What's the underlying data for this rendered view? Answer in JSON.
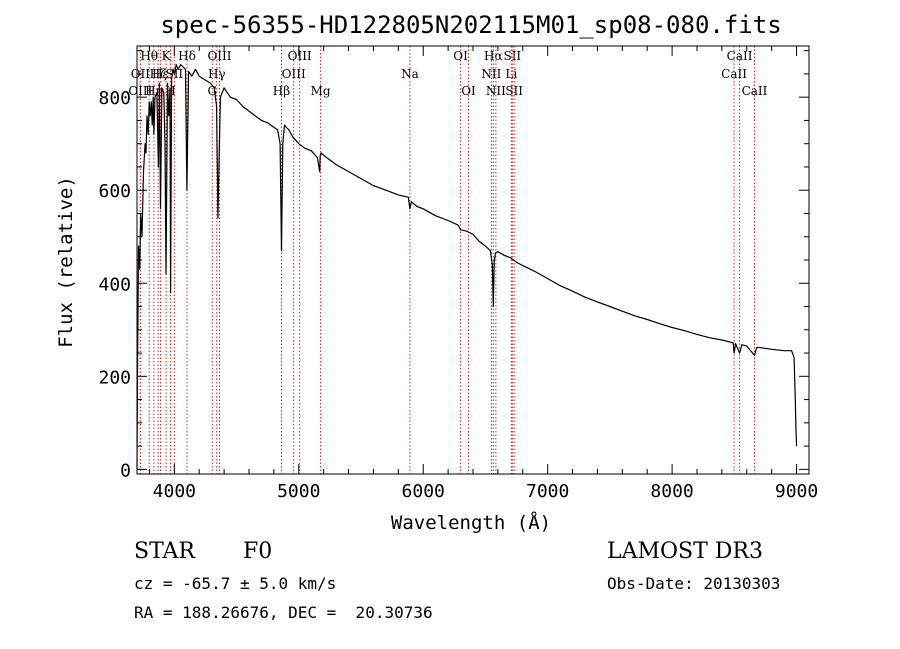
{
  "chart_data": {
    "type": "line",
    "title": "spec-56355-HD122805N202115M01_sp08-080.fits",
    "xlabel": "Wavelength (Å)",
    "ylabel": "Flux (relative)",
    "xlim": [
      3700,
      9100
    ],
    "ylim": [
      -10,
      910
    ],
    "xticks": [
      4000,
      5000,
      6000,
      7000,
      8000,
      9000
    ],
    "yticks": [
      0,
      200,
      400,
      600,
      800
    ],
    "series": [
      {
        "name": "spectrum",
        "x": [
          3700,
          3705,
          3712,
          3722,
          3730,
          3740,
          3752,
          3765,
          3772,
          3780,
          3790,
          3798,
          3806,
          3815,
          3822,
          3830,
          3836,
          3845,
          3860,
          3872,
          3880,
          3889,
          3900,
          3915,
          3925,
          3933,
          3945,
          3955,
          3965,
          3970,
          3978,
          3990,
          4000,
          4015,
          4030,
          4050,
          4070,
          4090,
          4101,
          4115,
          4140,
          4170,
          4200,
          4230,
          4260,
          4290,
          4320,
          4340,
          4350,
          4370,
          4400,
          4450,
          4500,
          4550,
          4600,
          4650,
          4700,
          4750,
          4800,
          4830,
          4850,
          4861,
          4872,
          4885,
          4900,
          4920,
          4950,
          5000,
          5050,
          5100,
          5150,
          5168,
          5172,
          5180,
          5200,
          5250,
          5300,
          5400,
          5500,
          5600,
          5700,
          5800,
          5880,
          5893,
          5905,
          5950,
          6000,
          6100,
          6200,
          6280,
          6300,
          6350,
          6400,
          6450,
          6500,
          6540,
          6555,
          6563,
          6570,
          6580,
          6600,
          6650,
          6700,
          6750,
          6800,
          6900,
          7000,
          7100,
          7200,
          7300,
          7400,
          7500,
          7600,
          7700,
          7800,
          7900,
          8000,
          8100,
          8200,
          8300,
          8400,
          8490,
          8498,
          8510,
          8542,
          8560,
          8600,
          8662,
          8680,
          8700,
          8800,
          8900,
          8960,
          8980,
          8990,
          8995,
          9000
        ],
        "values": [
          0,
          230,
          480,
          430,
          550,
          500,
          640,
          700,
          680,
          760,
          720,
          790,
          760,
          790,
          740,
          800,
          720,
          800,
          810,
          650,
          830,
          560,
          820,
          810,
          700,
          420,
          830,
          760,
          820,
          380,
          840,
          860,
          850,
          870,
          860,
          870,
          865,
          860,
          600,
          855,
          845,
          860,
          845,
          840,
          835,
          830,
          820,
          780,
          540,
          800,
          820,
          800,
          795,
          780,
          770,
          760,
          750,
          745,
          735,
          730,
          700,
          470,
          700,
          740,
          735,
          730,
          715,
          700,
          690,
          685,
          670,
          640,
          675,
          680,
          675,
          665,
          655,
          640,
          625,
          610,
          600,
          590,
          585,
          560,
          575,
          565,
          560,
          545,
          535,
          525,
          515,
          512,
          505,
          490,
          480,
          470,
          440,
          350,
          445,
          465,
          468,
          460,
          455,
          445,
          438,
          425,
          410,
          395,
          383,
          370,
          360,
          350,
          340,
          330,
          322,
          313,
          305,
          298,
          290,
          283,
          278,
          272,
          250,
          270,
          250,
          268,
          265,
          245,
          262,
          262,
          258,
          255,
          255,
          240,
          150,
          90,
          50
        ]
      }
    ],
    "spectral_lines": [
      {
        "label": "Hθ",
        "wavelength": 3798,
        "row": 1
      },
      {
        "label": "OII",
        "wavelength": 3727,
        "row": 2
      },
      {
        "label": "OIII",
        "wavelength": 3727,
        "row": 3
      },
      {
        "label": "Hη",
        "wavelength": 3836,
        "row": 3
      },
      {
        "label": "K",
        "wavelength": 3934,
        "row": 1
      },
      {
        "label": "Hε",
        "wavelength": 3889,
        "row": 2
      },
      {
        "label": "H",
        "wavelength": 3969,
        "row": 3
      },
      {
        "label": "Hζ",
        "wavelength": 3870,
        "row": 2
      },
      {
        "label": "SII",
        "wavelength": 4000,
        "row": 2
      },
      {
        "label": "Hδ",
        "wavelength": 4102,
        "row": 1
      },
      {
        "label": "OIII",
        "wavelength": 4363,
        "row": 1
      },
      {
        "label": "Hγ",
        "wavelength": 4341,
        "row": 2
      },
      {
        "label": "G",
        "wavelength": 4305,
        "row": 3
      },
      {
        "label": "Hβ",
        "wavelength": 4861,
        "row": 3
      },
      {
        "label": "OIII",
        "wavelength": 5007,
        "row": 1
      },
      {
        "label": "OIII",
        "wavelength": 4959,
        "row": 2
      },
      {
        "label": "Mg",
        "wavelength": 5175,
        "row": 3
      },
      {
        "label": "Na",
        "wavelength": 5893,
        "row": 2
      },
      {
        "label": "OI",
        "wavelength": 6300,
        "row": 1
      },
      {
        "label": "OI",
        "wavelength": 6364,
        "row": 3
      },
      {
        "label": "Hα",
        "wavelength": 6563,
        "row": 1
      },
      {
        "label": "SII",
        "wavelength": 6716,
        "row": 1
      },
      {
        "label": "NII",
        "wavelength": 6548,
        "row": 2
      },
      {
        "label": "Li",
        "wavelength": 6708,
        "row": 2
      },
      {
        "label": "NII",
        "wavelength": 6584,
        "row": 3
      },
      {
        "label": "SII",
        "wavelength": 6731,
        "row": 3
      },
      {
        "label": "CaII",
        "wavelength": 8542,
        "row": 1
      },
      {
        "label": "CaII",
        "wavelength": 8498,
        "row": 2
      },
      {
        "label": "CaII",
        "wavelength": 8662,
        "row": 3
      }
    ],
    "colors": {
      "spectrum": "#000000",
      "line_marker": "#c62828",
      "axes": "#000000"
    }
  },
  "info": {
    "object_class": "STAR",
    "subclass": "F0",
    "survey": "LAMOST DR3",
    "cz": "cz = -65.7 ± 5.0 km/s",
    "obs_date": "Obs-Date: 20130303",
    "coords": "RA = 188.26676, DEC =  20.30736"
  }
}
